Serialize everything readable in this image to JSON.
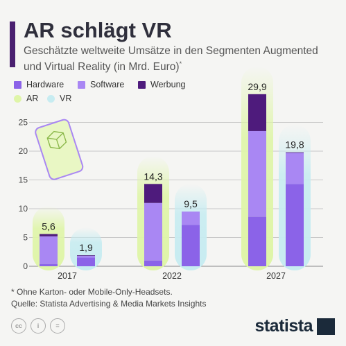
{
  "title": "AR schlägt VR",
  "subtitle": "Geschätzte weltweite Umsätze in den Segmenten Augmented und Virtual Reality (in Mrd. Euro)",
  "subtitle_mark": "*",
  "legend": {
    "hardware": "Hardware",
    "software": "Software",
    "werbung": "Werbung",
    "ar": "AR",
    "vr": "VR"
  },
  "footnote": "* Ohne Karton- oder Mobile-Only-Headsets.",
  "source": "Quelle: Statista Advertising & Media Markets Insights",
  "brand": "statista",
  "colors": {
    "hardware": "#8b63e8",
    "software": "#a987f3",
    "werbung": "#4e1b7c",
    "ar_glow": "#dff5a8",
    "vr_glow": "#c7ecf1",
    "accent": "#4a2070"
  },
  "chart_data": {
    "type": "bar",
    "stacked": true,
    "categories": [
      "2017",
      "2022",
      "2027"
    ],
    "groups": [
      "AR",
      "VR"
    ],
    "ylim": [
      0,
      30
    ],
    "yticks": [
      0,
      5,
      10,
      15,
      20,
      25
    ],
    "grid": true,
    "series": [
      {
        "name": "Hardware",
        "AR": [
          0.4,
          1.0,
          8.6
        ],
        "VR": [
          1.5,
          7.2,
          14.3
        ]
      },
      {
        "name": "Software",
        "AR": [
          4.8,
          10.0,
          14.9
        ],
        "VR": [
          0.3,
          2.3,
          5.4
        ]
      },
      {
        "name": "Werbung",
        "AR": [
          0.4,
          3.3,
          6.4
        ],
        "VR": [
          0.1,
          0.0,
          0.1
        ]
      }
    ],
    "totals": {
      "AR": [
        "5,6",
        "14,3",
        "29,9"
      ],
      "VR": [
        "1,9",
        "9,5",
        "19,8"
      ]
    }
  }
}
